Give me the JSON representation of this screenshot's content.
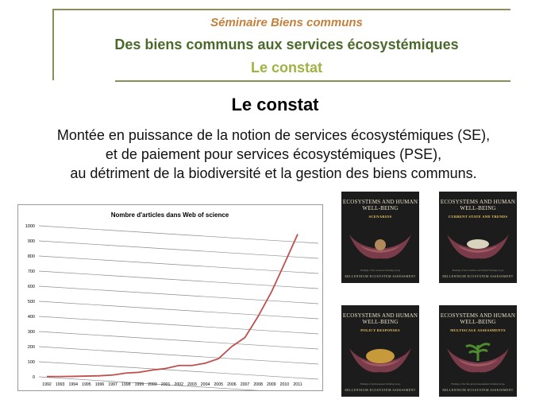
{
  "header": {
    "seminar": "Séminaire Biens communs",
    "subtitle": "Des biens communs aux services écosystémiques",
    "section": "Le constat"
  },
  "heading": "Le constat",
  "body_lines": [
    "Montée en puissance de la notion de services écosystémiques (SE),",
    "et de paiement pour services écosystémiques (PSE),",
    "au détriment de la biodiversité et la gestion des biens communs."
  ],
  "chart_data": {
    "type": "line",
    "title": "Nombre d'articles dans Web of science",
    "xlabel": "",
    "ylabel": "",
    "x": [
      "1992",
      "1993",
      "1994",
      "1995",
      "1996",
      "1997",
      "1998",
      "1999",
      "2000",
      "2001",
      "2002",
      "2003",
      "2004",
      "2005",
      "2006",
      "2007",
      "2008",
      "2009",
      "2010",
      "2011"
    ],
    "series": [
      {
        "values": [
          2,
          2,
          3,
          5,
          7,
          12,
          25,
          30,
          45,
          55,
          75,
          75,
          90,
          120,
          200,
          260,
          400,
          560,
          750,
          945
        ]
      }
    ],
    "ylim": [
      0,
      1000
    ],
    "yticks": [
      0,
      100,
      200,
      300,
      400,
      500,
      600,
      700,
      800,
      900,
      1000
    ],
    "grid": true,
    "legend": "none",
    "line_color": "#c0504d"
  },
  "covers": [
    {
      "title": "ECOSYSTEMS AND HUMAN WELL-BEING",
      "volume": "SCENARIOS",
      "footer": "Findings of the Scenarios Working Group",
      "brand": "MILLENNIUM ECOSYSTEM ASSESSMENT",
      "content": "#b08a5a"
    },
    {
      "title": "ECOSYSTEMS AND HUMAN WELL-BEING",
      "volume": "CURRENT STATE AND TRENDS",
      "footer": "Findings of the Condition and Trends Working Group",
      "brand": "MILLENNIUM ECOSYSTEM ASSESSMENT",
      "content": "#d9d2bd"
    },
    {
      "title": "ECOSYSTEMS AND HUMAN WELL-BEING",
      "volume": "POLICY RESPONSES",
      "footer": "Findings of the Responses Working Group",
      "brand": "MILLENNIUM ECOSYSTEM ASSESSMENT",
      "content": "#c69a3a"
    },
    {
      "title": "ECOSYSTEMS AND HUMAN WELL-BEING",
      "volume": "MULTISCALE ASSESSMENTS",
      "footer": "Findings of the Sub-global Assessments Working Group",
      "brand": "MILLENNIUM ECOSYSTEM ASSESSMENT",
      "content": "#4e8a2e"
    }
  ]
}
